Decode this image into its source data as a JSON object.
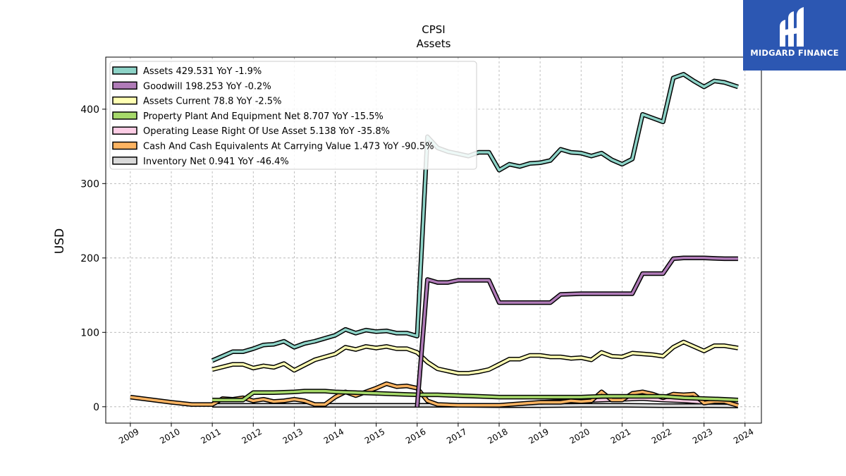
{
  "chart_data": {
    "type": "line",
    "title": "CPSI",
    "subtitle": "Assets",
    "ylabel": "USD",
    "xlabel": "",
    "xlim": [
      2008.4,
      2024.4
    ],
    "ylim": [
      -22,
      470
    ],
    "y_ticks": [
      0,
      100,
      200,
      300,
      400
    ],
    "x_ticks": [
      2009,
      2010,
      2011,
      2012,
      2013,
      2014,
      2015,
      2016,
      2017,
      2018,
      2019,
      2020,
      2021,
      2022,
      2023,
      2024
    ],
    "grid": true,
    "legend_position": "top-left",
    "series": [
      {
        "name": "Assets",
        "legend": "Assets  429.531 YoY -1.9%",
        "color": "#8dd3c7",
        "points": [
          [
            2011.0,
            62
          ],
          [
            2011.5,
            74
          ],
          [
            2011.75,
            74
          ],
          [
            2012.0,
            78
          ],
          [
            2012.25,
            83
          ],
          [
            2012.5,
            84
          ],
          [
            2012.75,
            88
          ],
          [
            2013.0,
            80
          ],
          [
            2013.25,
            85
          ],
          [
            2013.5,
            88
          ],
          [
            2013.75,
            92
          ],
          [
            2014.0,
            96
          ],
          [
            2014.25,
            104
          ],
          [
            2014.5,
            99
          ],
          [
            2014.75,
            103
          ],
          [
            2015.0,
            101
          ],
          [
            2015.25,
            102
          ],
          [
            2015.5,
            99
          ],
          [
            2015.75,
            99
          ],
          [
            2016.0,
            95
          ],
          [
            2016.25,
            363
          ],
          [
            2016.5,
            348
          ],
          [
            2016.75,
            343
          ],
          [
            2017.0,
            340
          ],
          [
            2017.25,
            337
          ],
          [
            2017.5,
            342
          ],
          [
            2017.75,
            342
          ],
          [
            2018.0,
            318
          ],
          [
            2018.25,
            326
          ],
          [
            2018.5,
            323
          ],
          [
            2018.75,
            327
          ],
          [
            2019.0,
            328
          ],
          [
            2019.25,
            331
          ],
          [
            2019.5,
            346
          ],
          [
            2019.75,
            342
          ],
          [
            2020.0,
            341
          ],
          [
            2020.25,
            337
          ],
          [
            2020.5,
            341
          ],
          [
            2020.75,
            332
          ],
          [
            2021.0,
            326
          ],
          [
            2021.25,
            333
          ],
          [
            2021.5,
            393
          ],
          [
            2021.75,
            388
          ],
          [
            2022.0,
            383
          ],
          [
            2022.25,
            442
          ],
          [
            2022.5,
            447
          ],
          [
            2022.75,
            438
          ],
          [
            2023.0,
            430
          ],
          [
            2023.25,
            438
          ],
          [
            2023.5,
            436
          ],
          [
            2023.83,
            430
          ]
        ]
      },
      {
        "name": "Goodwill",
        "legend": "Goodwill  198.253 YoY -0.2%",
        "color": "#b07bb8",
        "points": [
          [
            2016.0,
            0
          ],
          [
            2016.25,
            171
          ],
          [
            2016.5,
            167
          ],
          [
            2016.75,
            167
          ],
          [
            2017.0,
            170
          ],
          [
            2017.25,
            170
          ],
          [
            2017.5,
            170
          ],
          [
            2017.75,
            170
          ],
          [
            2018.0,
            140
          ],
          [
            2018.5,
            140
          ],
          [
            2019.0,
            140
          ],
          [
            2019.25,
            140
          ],
          [
            2019.5,
            151
          ],
          [
            2020.0,
            152
          ],
          [
            2020.5,
            152
          ],
          [
            2021.0,
            152
          ],
          [
            2021.25,
            152
          ],
          [
            2021.5,
            179
          ],
          [
            2022.0,
            179
          ],
          [
            2022.25,
            199
          ],
          [
            2022.5,
            200
          ],
          [
            2023.0,
            200
          ],
          [
            2023.5,
            199
          ],
          [
            2023.83,
            199
          ]
        ]
      },
      {
        "name": "Assets Current",
        "legend": "Assets Current  78.8 YoY -2.5%",
        "color": "#ffffb3",
        "points": [
          [
            2011.0,
            50
          ],
          [
            2011.5,
            57
          ],
          [
            2011.75,
            57
          ],
          [
            2012.0,
            52
          ],
          [
            2012.25,
            55
          ],
          [
            2012.5,
            53
          ],
          [
            2012.75,
            58
          ],
          [
            2013.0,
            49
          ],
          [
            2013.25,
            56
          ],
          [
            2013.5,
            63
          ],
          [
            2013.75,
            67
          ],
          [
            2014.0,
            71
          ],
          [
            2014.25,
            80
          ],
          [
            2014.5,
            77
          ],
          [
            2014.75,
            81
          ],
          [
            2015.0,
            79
          ],
          [
            2015.25,
            81
          ],
          [
            2015.5,
            78
          ],
          [
            2015.75,
            78
          ],
          [
            2016.0,
            73
          ],
          [
            2016.25,
            60
          ],
          [
            2016.5,
            51
          ],
          [
            2016.75,
            48
          ],
          [
            2017.0,
            45
          ],
          [
            2017.25,
            45
          ],
          [
            2017.5,
            47
          ],
          [
            2017.75,
            50
          ],
          [
            2018.0,
            57
          ],
          [
            2018.25,
            64
          ],
          [
            2018.5,
            64
          ],
          [
            2018.75,
            69
          ],
          [
            2019.0,
            69
          ],
          [
            2019.25,
            67
          ],
          [
            2019.5,
            67
          ],
          [
            2019.75,
            65
          ],
          [
            2020.0,
            66
          ],
          [
            2020.25,
            63
          ],
          [
            2020.5,
            73
          ],
          [
            2020.75,
            68
          ],
          [
            2021.0,
            67
          ],
          [
            2021.25,
            72
          ],
          [
            2021.5,
            71
          ],
          [
            2021.75,
            70
          ],
          [
            2022.0,
            68
          ],
          [
            2022.25,
            80
          ],
          [
            2022.5,
            87
          ],
          [
            2022.75,
            81
          ],
          [
            2023.0,
            75
          ],
          [
            2023.25,
            82
          ],
          [
            2023.5,
            82
          ],
          [
            2023.83,
            79
          ]
        ]
      },
      {
        "name": "Property Plant And Equipment Net",
        "legend": "Property Plant And Equipment Net  8.707 YoY -15.5%",
        "color": "#a6d96a",
        "points": [
          [
            2011.0,
            9
          ],
          [
            2011.75,
            9
          ],
          [
            2012.0,
            19
          ],
          [
            2012.5,
            19
          ],
          [
            2013.0,
            20
          ],
          [
            2013.25,
            21
          ],
          [
            2013.75,
            21
          ],
          [
            2014.0,
            20
          ],
          [
            2014.5,
            19
          ],
          [
            2015.0,
            18
          ],
          [
            2015.5,
            17
          ],
          [
            2016.0,
            16
          ],
          [
            2016.5,
            16
          ],
          [
            2017.0,
            15
          ],
          [
            2017.5,
            14
          ],
          [
            2018.0,
            13
          ],
          [
            2018.5,
            13
          ],
          [
            2019.0,
            13
          ],
          [
            2019.5,
            13
          ],
          [
            2020.0,
            13
          ],
          [
            2020.5,
            14
          ],
          [
            2021.0,
            14
          ],
          [
            2021.5,
            14
          ],
          [
            2022.0,
            14
          ],
          [
            2022.5,
            12
          ],
          [
            2023.0,
            11
          ],
          [
            2023.5,
            10
          ],
          [
            2023.83,
            9
          ]
        ]
      },
      {
        "name": "Operating Lease Right Of Use Asset",
        "legend": "Operating Lease Right Of Use Asset  5.138 YoY -35.8%",
        "color": "#fccde5",
        "points": [
          [
            2019.0,
            6
          ],
          [
            2019.5,
            7
          ],
          [
            2020.0,
            8
          ],
          [
            2020.5,
            9
          ],
          [
            2021.0,
            10
          ],
          [
            2021.5,
            11
          ],
          [
            2022.0,
            9
          ],
          [
            2022.5,
            8
          ],
          [
            2023.0,
            6
          ],
          [
            2023.5,
            6
          ],
          [
            2023.83,
            5
          ]
        ]
      },
      {
        "name": "Cash And Cash Equivalents At Carrying Value",
        "legend": "Cash And Cash Equivalents At Carrying Value  1.473 YoY -90.5%",
        "color": "#fdb462",
        "points": [
          [
            2009.0,
            13
          ],
          [
            2010.0,
            6
          ],
          [
            2010.5,
            3
          ],
          [
            2011.0,
            3
          ],
          [
            2011.25,
            11
          ],
          [
            2011.5,
            10
          ],
          [
            2011.75,
            12
          ],
          [
            2012.0,
            8
          ],
          [
            2012.25,
            10
          ],
          [
            2012.5,
            7
          ],
          [
            2012.75,
            8
          ],
          [
            2013.0,
            10
          ],
          [
            2013.25,
            8
          ],
          [
            2013.5,
            3
          ],
          [
            2013.75,
            3
          ],
          [
            2014.0,
            13
          ],
          [
            2014.25,
            20
          ],
          [
            2014.5,
            15
          ],
          [
            2014.75,
            20
          ],
          [
            2015.0,
            25
          ],
          [
            2015.25,
            31
          ],
          [
            2015.5,
            27
          ],
          [
            2015.75,
            28
          ],
          [
            2016.0,
            25
          ],
          [
            2016.25,
            8
          ],
          [
            2016.5,
            3
          ],
          [
            2017.0,
            2
          ],
          [
            2018.0,
            2
          ],
          [
            2018.75,
            5
          ],
          [
            2019.0,
            6
          ],
          [
            2019.5,
            6
          ],
          [
            2019.75,
            8
          ],
          [
            2020.0,
            7
          ],
          [
            2020.25,
            8
          ],
          [
            2020.5,
            20
          ],
          [
            2020.75,
            9
          ],
          [
            2021.0,
            9
          ],
          [
            2021.25,
            18
          ],
          [
            2021.5,
            20
          ],
          [
            2021.75,
            17
          ],
          [
            2022.0,
            12
          ],
          [
            2022.25,
            17
          ],
          [
            2022.5,
            16
          ],
          [
            2022.75,
            17
          ],
          [
            2023.0,
            5
          ],
          [
            2023.25,
            7
          ],
          [
            2023.5,
            7
          ],
          [
            2023.83,
            1.5
          ]
        ]
      },
      {
        "name": "Inventory Net",
        "legend": "Inventory Net  0.941 YoY -46.4%",
        "color": "#d9d9d9",
        "points": [
          [
            2011.0,
            2
          ],
          [
            2012.0,
            2
          ],
          [
            2013.0,
            2
          ],
          [
            2014.0,
            2
          ],
          [
            2015.0,
            2
          ],
          [
            2016.0,
            2
          ],
          [
            2017.0,
            2
          ],
          [
            2018.0,
            1.5
          ],
          [
            2019.0,
            1.5
          ],
          [
            2020.0,
            2
          ],
          [
            2021.0,
            2
          ],
          [
            2022.0,
            1.5
          ],
          [
            2023.0,
            1.5
          ],
          [
            2023.83,
            1
          ]
        ]
      }
    ]
  },
  "logo": {
    "text": "MIDGARD FINANCE",
    "background": "#2c57b2"
  }
}
